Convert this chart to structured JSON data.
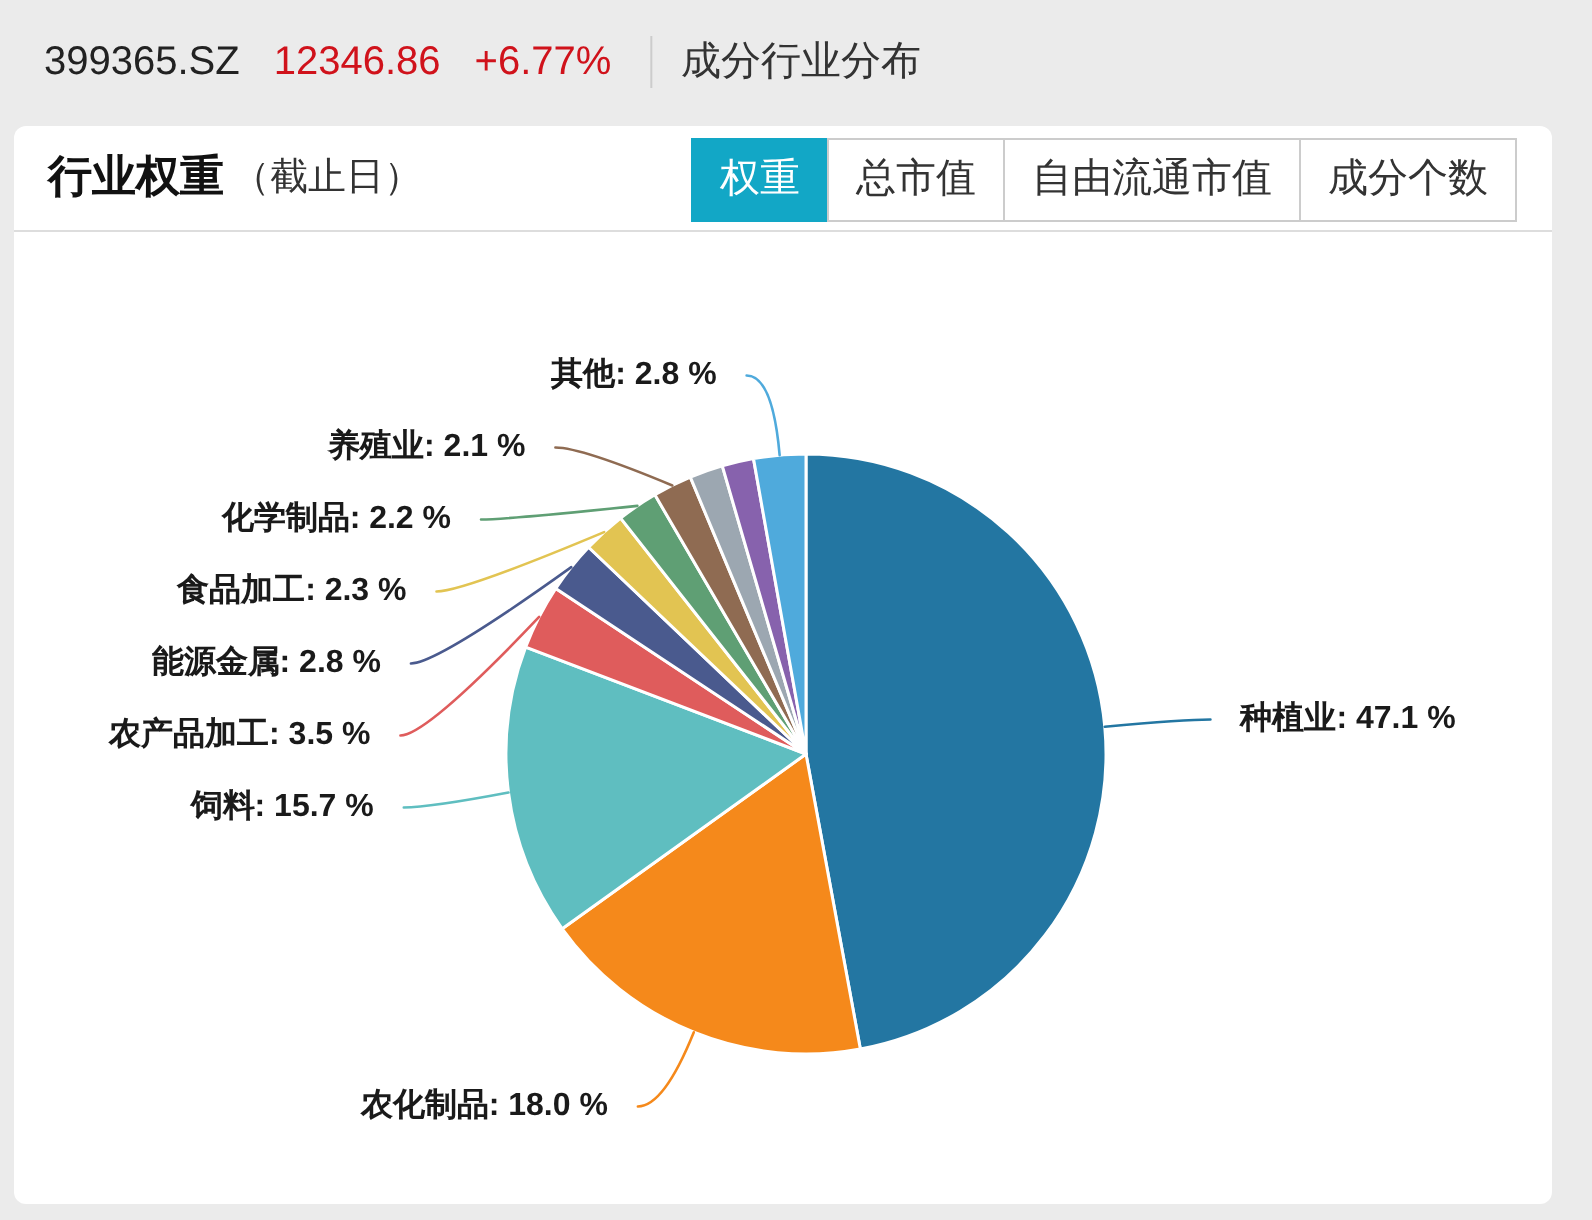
{
  "chart_data": {
    "type": "pie",
    "title": "行业权重",
    "subtitle": "（截止日）",
    "categories": [
      "种植业",
      "农化制品",
      "饲料",
      "农产品加工",
      "能源金属",
      "食品加工",
      "化学制品",
      "养殖业",
      null,
      null,
      "其他"
    ],
    "values": [
      47.1,
      18.0,
      15.7,
      3.5,
      2.8,
      2.3,
      2.2,
      2.1,
      1.8,
      1.7,
      2.8
    ],
    "value_labels": [
      "47.1 %",
      "18.0 %",
      "15.7 %",
      "3.5 %",
      "2.8 %",
      "2.3 %",
      "2.2 %",
      "2.1 %",
      null,
      null,
      "2.8 %"
    ],
    "colors": [
      "#2376a2",
      "#f5891b",
      "#5fbec0",
      "#df5c5c",
      "#4a5a8e",
      "#e2c452",
      "#5f9f74",
      "#8f6b52",
      "#9ca7b1",
      "#8762ad",
      "#4faadc"
    ],
    "annotations": [
      "399365.SZ",
      "12346.86",
      "+6.77%",
      "成分行业分布",
      "权重",
      "总市值",
      "自由流通市值",
      "成分个数"
    ]
  }
}
